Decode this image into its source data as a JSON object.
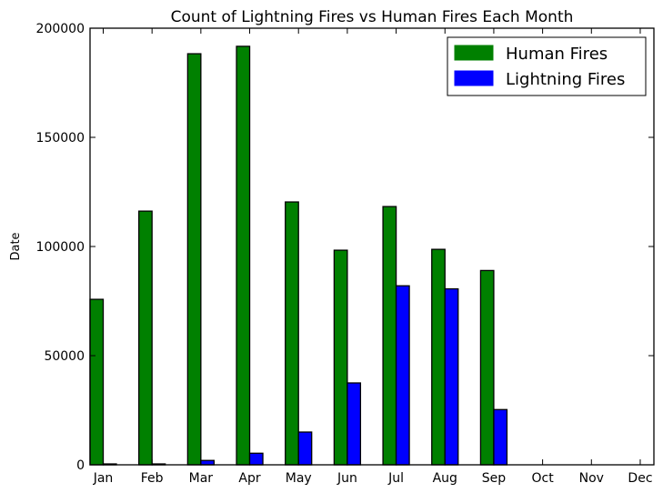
{
  "chart_data": {
    "type": "bar",
    "title": "Count of Lightning Fires vs Human Fires Each Month",
    "xlabel": "",
    "ylabel": "Date",
    "categories": [
      "Jan",
      "Feb",
      "Mar",
      "Apr",
      "May",
      "Jun",
      "Jul",
      "Aug",
      "Sep",
      "Oct",
      "Nov",
      "Dec"
    ],
    "ylim": [
      0,
      200000
    ],
    "yticks": [
      "0",
      "50000",
      "100000",
      "150000",
      "200000"
    ],
    "series": [
      {
        "name": "Human Fires",
        "color": "#008000",
        "values": [
          75800,
          116200,
          188300,
          191700,
          120400,
          98300,
          118300,
          98700,
          89000,
          0,
          0,
          0
        ]
      },
      {
        "name": "Lightning Fires",
        "color": "#0000ff",
        "values": [
          400,
          400,
          2000,
          5300,
          15000,
          37500,
          82000,
          80600,
          25300,
          0,
          0,
          0
        ]
      }
    ],
    "legend_position": "top-right",
    "grid": false
  }
}
